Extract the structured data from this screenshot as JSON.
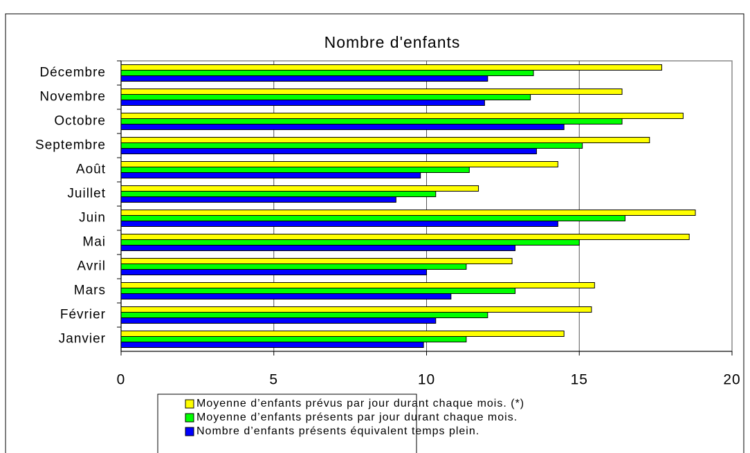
{
  "chart_data": {
    "type": "hbar",
    "title": "Nombre d'enfants",
    "categories": [
      "Janvier",
      "Février",
      "Mars",
      "Avril",
      "Mai",
      "Juin",
      "Juillet",
      "Août",
      "Septembre",
      "Octobre",
      "Novembre",
      "Décembre"
    ],
    "series": [
      {
        "name": "Moyenne d’enfants prévus par jour durant chaque mois. (*)",
        "color": "#ffff00",
        "values": [
          14.5,
          15.4,
          15.5,
          12.8,
          18.6,
          18.8,
          11.7,
          14.3,
          17.3,
          18.4,
          16.4,
          17.7
        ]
      },
      {
        "name": "Moyenne d’enfants présents par jour durant chaque mois.",
        "color": "#00ff00",
        "values": [
          11.3,
          12.0,
          12.9,
          11.3,
          15.0,
          16.5,
          10.3,
          11.4,
          15.1,
          16.4,
          13.4,
          13.5
        ]
      },
      {
        "name": "Nombre d’enfants présents équivalent temps plein.",
        "color": "#0000ff",
        "values": [
          9.9,
          10.3,
          10.8,
          10.0,
          12.9,
          14.3,
          9.0,
          9.8,
          13.6,
          14.5,
          11.9,
          12.0
        ]
      }
    ],
    "xlim": [
      0,
      20
    ],
    "xticks": [
      0,
      5,
      10,
      15,
      20
    ],
    "grid": true
  }
}
